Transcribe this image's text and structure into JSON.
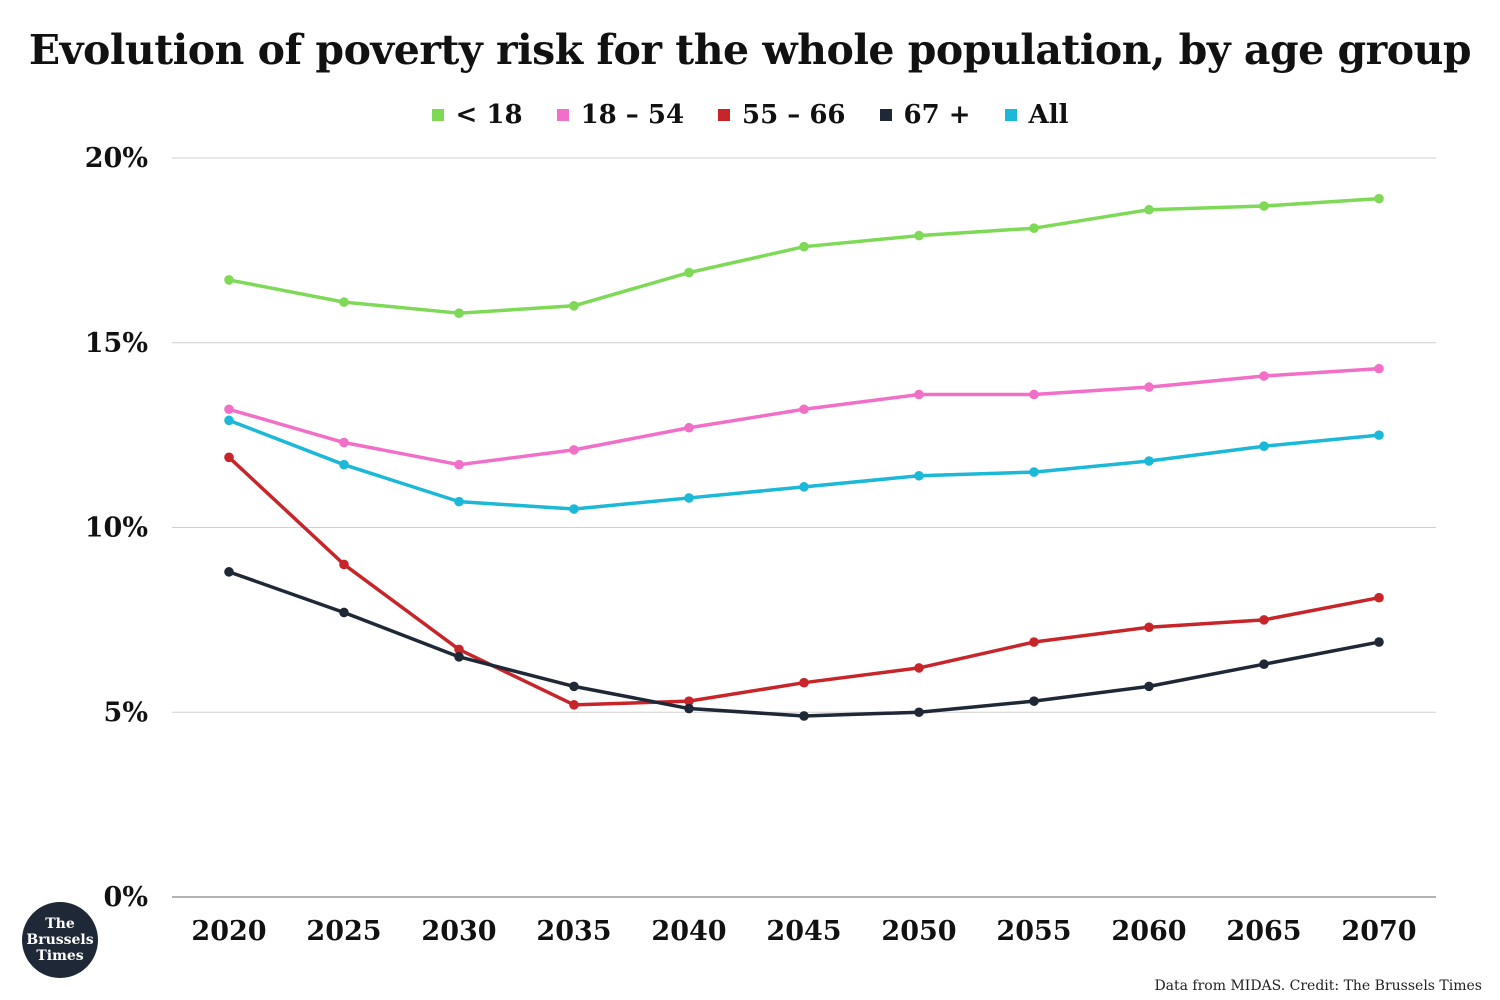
{
  "chart_data": {
    "type": "line",
    "title": "Evolution of poverty risk for the whole population, by age group",
    "xlabel": "",
    "ylabel": "",
    "x": [
      2020,
      2025,
      2030,
      2035,
      2040,
      2045,
      2050,
      2055,
      2060,
      2065,
      2070
    ],
    "x_tick_labels": [
      "2020",
      "2025",
      "2030",
      "2035",
      "2040",
      "2045",
      "2050",
      "2055",
      "2060",
      "2065",
      "2070"
    ],
    "ylim": [
      0,
      20
    ],
    "y_ticks": [
      0,
      5,
      10,
      15,
      20
    ],
    "y_tick_labels": [
      "0%",
      "5%",
      "10%",
      "15%",
      "20%"
    ],
    "grid": "horizontal",
    "legend_position": "top-center",
    "series": [
      {
        "name": "< 18",
        "color": "#7ed957",
        "values": [
          16.7,
          16.1,
          15.8,
          16.0,
          16.9,
          17.6,
          17.9,
          18.1,
          18.6,
          18.7,
          18.9
        ]
      },
      {
        "name": "18 – 54",
        "color": "#f26fc7",
        "values": [
          13.2,
          12.3,
          11.7,
          12.1,
          12.7,
          13.2,
          13.6,
          13.6,
          13.8,
          14.1,
          14.3
        ]
      },
      {
        "name": "55 – 66",
        "color": "#c8252a",
        "values": [
          11.9,
          9.0,
          6.7,
          5.2,
          5.3,
          5.8,
          6.2,
          6.9,
          7.3,
          7.5,
          8.1
        ]
      },
      {
        "name": "67 +",
        "color": "#1f2837",
        "values": [
          8.8,
          7.7,
          6.5,
          5.7,
          5.1,
          4.9,
          5.0,
          5.3,
          5.7,
          6.3,
          6.9
        ]
      },
      {
        "name": "All",
        "color": "#1bb8d8",
        "values": [
          12.9,
          11.7,
          10.7,
          10.5,
          10.8,
          11.1,
          11.4,
          11.5,
          11.8,
          12.2,
          12.5
        ]
      }
    ]
  },
  "footer": {
    "credit": "Data from MIDAS. Credit: The Brussels Times",
    "logo_line1": "The",
    "logo_line2": "Brussels",
    "logo_line3": "Times"
  }
}
